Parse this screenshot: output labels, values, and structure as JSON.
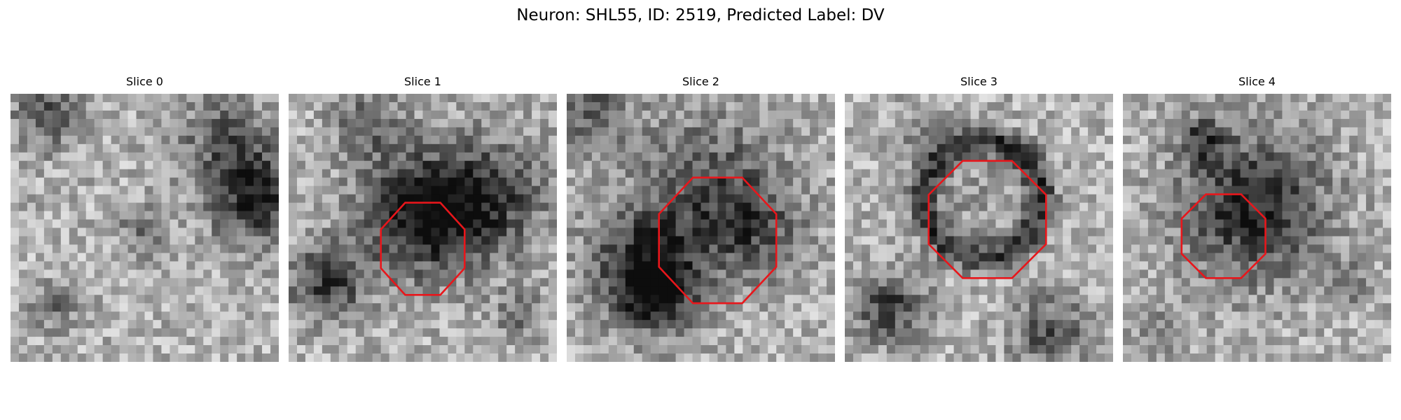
{
  "figure": {
    "title": "Neuron: SHL55, ID: 2519, Predicted Label: DV",
    "colormap": "grayscale",
    "roi_outline_color": "#e8161b"
  },
  "slices": [
    {
      "label": "Slice 0",
      "has_roi_outline": false
    },
    {
      "label": "Slice 1",
      "has_roi_outline": true
    },
    {
      "label": "Slice 2",
      "has_roi_outline": true
    },
    {
      "label": "Slice 3",
      "has_roi_outline": true
    },
    {
      "label": "Slice 4",
      "has_roi_outline": true
    }
  ]
}
